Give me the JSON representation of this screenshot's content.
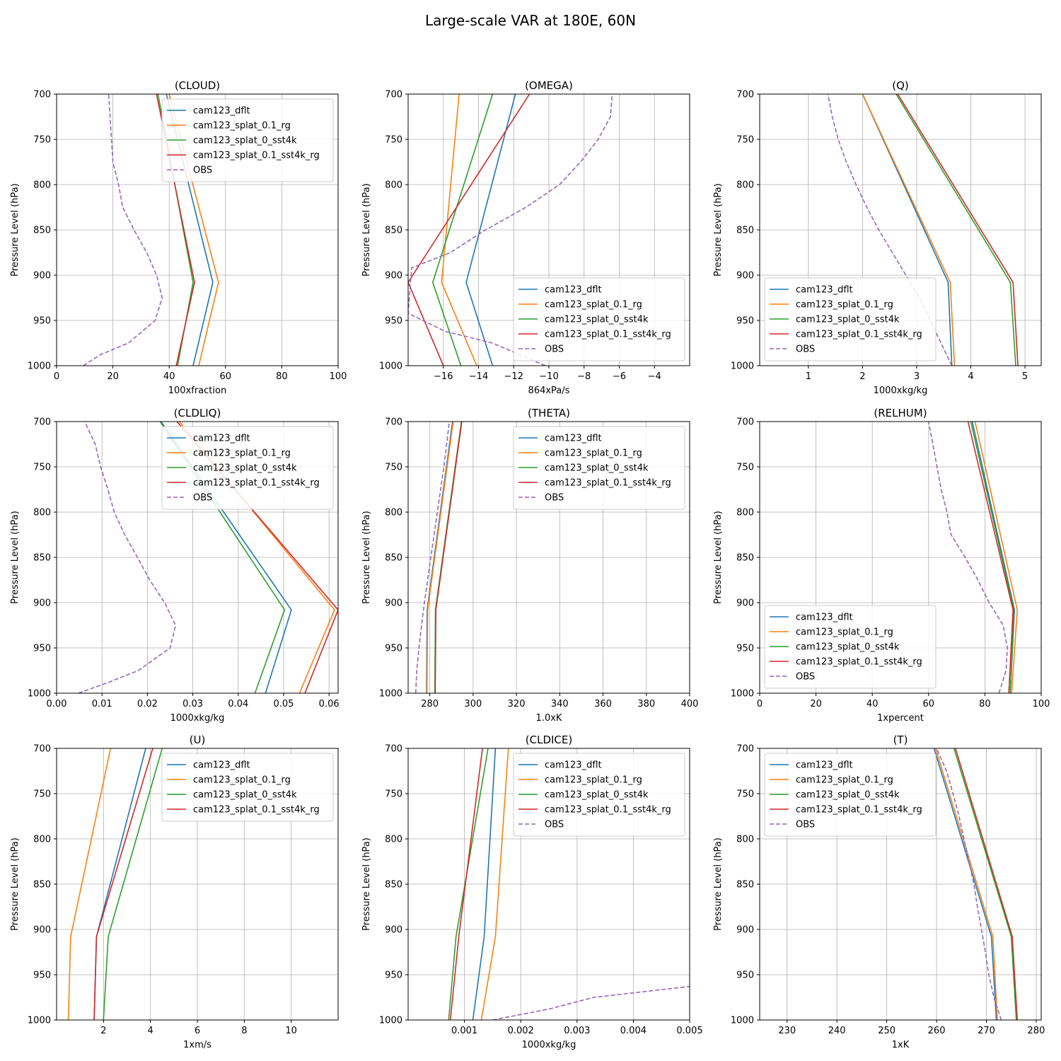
{
  "figure": {
    "suptitle": "Large-scale VAR at 180E, 60N"
  },
  "colors": {
    "cam123_dflt": "#1f77b4",
    "cam123_splat_0.1_rg": "#ff7f0e",
    "cam123_splat_0_sst4k": "#2ca02c",
    "cam123_splat_0.1_sst4k_rg": "#d62728",
    "OBS": "#9467bd",
    "grid": "#b0b0b0"
  },
  "chart_data": [
    {
      "type": "line",
      "title": "(CLOUD)",
      "xlabel": "100xfraction",
      "ylabel": "Pressure Level (hPa)",
      "xlim": [
        0,
        100
      ],
      "ylim": [
        1000,
        700
      ],
      "grid": true,
      "legend": "top-right",
      "xticks": [
        0,
        20,
        40,
        60,
        80,
        100
      ],
      "yticks": [
        700,
        750,
        800,
        850,
        900,
        950,
        1000
      ],
      "series": [
        {
          "name": "cam123_dflt",
          "x": [
            48.5,
            55.5,
            39.0
          ],
          "y": [
            1000,
            908,
            700
          ]
        },
        {
          "name": "cam123_splat_0.1_rg",
          "x": [
            50.5,
            57.5,
            40.0
          ],
          "y": [
            1000,
            908,
            700
          ]
        },
        {
          "name": "cam123_splat_0_sst4k",
          "x": [
            43.0,
            48.5,
            36.0
          ],
          "y": [
            1000,
            908,
            700
          ]
        },
        {
          "name": "cam123_splat_0.1_sst4k_rg",
          "x": [
            42.5,
            49.0,
            35.5
          ],
          "y": [
            1000,
            908,
            700
          ]
        },
        {
          "name": "OBS",
          "dashed": true,
          "x": [
            9.5,
            15.5,
            25.5,
            35.0,
            37.5,
            35.5,
            32.0,
            27.5,
            23.5,
            22.0,
            20.0,
            19.5,
            19.0,
            18.5
          ],
          "y": [
            1000,
            988,
            975,
            950,
            925,
            900,
            875,
            850,
            825,
            800,
            775,
            750,
            725,
            700
          ]
        }
      ]
    },
    {
      "type": "line",
      "title": "(OMEGA)",
      "xlabel": "864xPa/s",
      "ylabel": "Pressure Level (hPa)",
      "xlim": [
        -18,
        -2
      ],
      "ylim": [
        1000,
        700
      ],
      "grid": true,
      "legend": "lower-right",
      "xticks": [
        -16,
        -14,
        -12,
        -10,
        -8,
        -6,
        -4
      ],
      "xticklabels": [
        "−16",
        "−14",
        "−12",
        "−10",
        "−8",
        "−6",
        "−4"
      ],
      "yticks": [
        700,
        750,
        800,
        850,
        900,
        950,
        1000
      ],
      "series": [
        {
          "name": "cam123_dflt",
          "x": [
            -13.2,
            -14.7,
            -11.9
          ],
          "y": [
            1000,
            908,
            700
          ]
        },
        {
          "name": "cam123_splat_0.1_rg",
          "x": [
            -14.1,
            -16.1,
            -15.1
          ],
          "y": [
            1000,
            908,
            700
          ]
        },
        {
          "name": "cam123_splat_0_sst4k",
          "x": [
            -15.0,
            -16.6,
            -13.2
          ],
          "y": [
            1000,
            908,
            700
          ]
        },
        {
          "name": "cam123_splat_0.1_sst4k_rg",
          "x": [
            -16.0,
            -18.0,
            -11.1
          ],
          "y": [
            1000,
            908,
            700
          ]
        },
        {
          "name": "OBS",
          "dashed": true,
          "x": [
            -10.2,
            -13.2,
            -15.9,
            -18.0,
            -17.8,
            -15.6,
            -13.6,
            -11.3,
            -9.4,
            -8.2,
            -7.2,
            -6.5,
            -6.4
          ],
          "y": [
            1000,
            975,
            962,
            942,
            892,
            875,
            850,
            825,
            800,
            775,
            750,
            725,
            700
          ]
        }
      ]
    },
    {
      "type": "line",
      "title": "(Q)",
      "xlabel": "1000xkg/kg",
      "ylabel": "Pressure Level (hPa)",
      "xlim": [
        0.1,
        5.3
      ],
      "ylim": [
        1000,
        700
      ],
      "grid": true,
      "legend": "lower-left",
      "xticks": [
        1,
        2,
        3,
        4,
        5
      ],
      "yticks": [
        700,
        750,
        800,
        850,
        900,
        950,
        1000
      ],
      "series": [
        {
          "name": "cam123_dflt",
          "x": [
            3.65,
            3.58,
            2.0
          ],
          "y": [
            1000,
            908,
            700
          ]
        },
        {
          "name": "cam123_splat_0.1_rg",
          "x": [
            3.7,
            3.62,
            2.0
          ],
          "y": [
            1000,
            908,
            700
          ]
        },
        {
          "name": "cam123_splat_0_sst4k",
          "x": [
            4.83,
            4.73,
            2.62
          ],
          "y": [
            1000,
            908,
            700
          ]
        },
        {
          "name": "cam123_splat_0.1_sst4k_rg",
          "x": [
            4.87,
            4.78,
            2.65
          ],
          "y": [
            1000,
            908,
            700
          ]
        },
        {
          "name": "OBS",
          "dashed": true,
          "x": [
            3.65,
            3.45,
            3.25,
            3.05,
            2.8,
            2.55,
            2.3,
            2.08,
            1.88,
            1.7,
            1.55,
            1.44,
            1.36
          ],
          "y": [
            1000,
            975,
            950,
            925,
            900,
            875,
            850,
            825,
            800,
            775,
            750,
            725,
            700
          ]
        }
      ]
    },
    {
      "type": "line",
      "title": "(CLDLIQ)",
      "xlabel": "1000xkg/kg",
      "ylabel": "Pressure Level (hPa)",
      "xlim": [
        0,
        0.062
      ],
      "ylim": [
        1000,
        700
      ],
      "grid": true,
      "legend": "top-right",
      "xticks": [
        0,
        0.01,
        0.02,
        0.03,
        0.04,
        0.05,
        0.06
      ],
      "xticklabels": [
        "0.00",
        "0.01",
        "0.02",
        "0.03",
        "0.04",
        "0.05",
        "0.06"
      ],
      "yticks": [
        700,
        750,
        800,
        850,
        900,
        950,
        1000
      ],
      "series": [
        {
          "name": "cam123_dflt",
          "x": [
            0.046,
            0.0517,
            0.023
          ],
          "y": [
            1000,
            908,
            700
          ]
        },
        {
          "name": "cam123_splat_0.1_rg",
          "x": [
            0.0535,
            0.0612,
            0.027
          ],
          "y": [
            1000,
            908,
            700
          ]
        },
        {
          "name": "cam123_splat_0_sst4k",
          "x": [
            0.0437,
            0.0502,
            0.0228
          ],
          "y": [
            1000,
            908,
            700
          ]
        },
        {
          "name": "cam123_splat_0.1_sst4k_rg",
          "x": [
            0.0547,
            0.062,
            0.0265
          ],
          "y": [
            1000,
            908,
            700
          ]
        },
        {
          "name": "OBS",
          "dashed": true,
          "x": [
            0.0048,
            0.0115,
            0.018,
            0.025,
            0.0262,
            0.0238,
            0.0205,
            0.0178,
            0.015,
            0.0127,
            0.0113,
            0.0097,
            0.0085,
            0.0062
          ],
          "y": [
            1000,
            988,
            975,
            950,
            925,
            900,
            875,
            850,
            825,
            800,
            775,
            750,
            725,
            700
          ]
        }
      ]
    },
    {
      "type": "line",
      "title": "(THETA)",
      "xlabel": "1.0xK",
      "ylabel": "Pressure Level (hPa)",
      "xlim": [
        270,
        400
      ],
      "ylim": [
        1000,
        700
      ],
      "grid": true,
      "legend": "top-right",
      "xticks": [
        280,
        300,
        320,
        340,
        360,
        380,
        400
      ],
      "yticks": [
        700,
        750,
        800,
        850,
        900,
        950,
        1000
      ],
      "series": [
        {
          "name": "cam123_dflt",
          "x": [
            278.5,
            278.8,
            290.5
          ],
          "y": [
            1000,
            908,
            700
          ]
        },
        {
          "name": "cam123_splat_0.1_rg",
          "x": [
            278.7,
            279.0,
            290.8
          ],
          "y": [
            1000,
            908,
            700
          ]
        },
        {
          "name": "cam123_splat_0_sst4k",
          "x": [
            282.3,
            282.6,
            294.6
          ],
          "y": [
            1000,
            908,
            700
          ]
        },
        {
          "name": "cam123_splat_0.1_sst4k_rg",
          "x": [
            282.5,
            282.8,
            294.8
          ],
          "y": [
            1000,
            908,
            700
          ]
        },
        {
          "name": "OBS",
          "dashed": true,
          "x": [
            273.5,
            274.0,
            275.0,
            276.2,
            277.5,
            279.0,
            280.5,
            282.0,
            283.5,
            285.0,
            286.5,
            287.8,
            289.0
          ],
          "y": [
            1000,
            975,
            950,
            925,
            900,
            875,
            850,
            825,
            800,
            775,
            750,
            725,
            700
          ]
        }
      ]
    },
    {
      "type": "line",
      "title": "(RELHUM)",
      "xlabel": "1xpercent",
      "ylabel": "Pressure Level (hPa)",
      "xlim": [
        0,
        100
      ],
      "ylim": [
        1000,
        700
      ],
      "grid": true,
      "legend": "lower-left",
      "xticks": [
        0,
        20,
        40,
        60,
        80,
        100
      ],
      "yticks": [
        700,
        750,
        800,
        850,
        900,
        950,
        1000
      ],
      "series": [
        {
          "name": "cam123_dflt",
          "x": [
            89.0,
            90.5,
            75.5
          ],
          "y": [
            1000,
            908,
            700
          ]
        },
        {
          "name": "cam123_splat_0.1_rg",
          "x": [
            89.5,
            91.5,
            76.5
          ],
          "y": [
            1000,
            908,
            700
          ]
        },
        {
          "name": "cam123_splat_0_sst4k",
          "x": [
            89.0,
            90.3,
            75.0
          ],
          "y": [
            1000,
            908,
            700
          ]
        },
        {
          "name": "cam123_splat_0.1_sst4k_rg",
          "x": [
            88.5,
            90.0,
            74.0
          ],
          "y": [
            1000,
            908,
            700
          ]
        },
        {
          "name": "OBS",
          "dashed": true,
          "x": [
            85.0,
            87.5,
            88.0,
            86.5,
            81.5,
            77.5,
            73.0,
            68.0,
            66.5,
            64.5,
            63.0,
            61.5,
            60.0
          ],
          "y": [
            1000,
            975,
            950,
            925,
            900,
            875,
            850,
            825,
            800,
            775,
            750,
            725,
            700
          ]
        }
      ]
    },
    {
      "type": "line",
      "title": "(U)",
      "xlabel": "1xm/s",
      "ylabel": "Pressure Level (hPa)",
      "xlim": [
        0,
        12
      ],
      "ylim": [
        1000,
        700
      ],
      "grid": true,
      "legend": "top-right",
      "xticks": [
        2,
        4,
        6,
        8,
        10
      ],
      "yticks": [
        700,
        750,
        800,
        850,
        900,
        950,
        1000
      ],
      "series": [
        {
          "name": "cam123_dflt",
          "x": [
            1.6,
            1.7,
            3.8
          ],
          "y": [
            1000,
            908,
            700
          ]
        },
        {
          "name": "cam123_splat_0.1_rg",
          "x": [
            0.5,
            0.6,
            2.3
          ],
          "y": [
            1000,
            908,
            700
          ]
        },
        {
          "name": "cam123_splat_0_sst4k",
          "x": [
            2.0,
            2.2,
            4.5
          ],
          "y": [
            1000,
            908,
            700
          ]
        },
        {
          "name": "cam123_splat_0.1_sst4k_rg",
          "x": [
            1.6,
            1.7,
            4.1
          ],
          "y": [
            1000,
            908,
            700
          ]
        }
      ]
    },
    {
      "type": "line",
      "title": "(CLDICE)",
      "xlabel": "1000xkg/kg",
      "ylabel": "Pressure Level (hPa)",
      "xlim": [
        0,
        0.005
      ],
      "ylim": [
        1000,
        700
      ],
      "grid": true,
      "legend": "top-right",
      "xticks": [
        0.001,
        0.002,
        0.003,
        0.004,
        0.005
      ],
      "yticks": [
        700,
        750,
        800,
        850,
        900,
        950,
        1000
      ],
      "series": [
        {
          "name": "cam123_dflt",
          "x": [
            0.00115,
            0.00135,
            0.00155
          ],
          "y": [
            1000,
            908,
            700
          ]
        },
        {
          "name": "cam123_splat_0.1_rg",
          "x": [
            0.0013,
            0.00155,
            0.00178
          ],
          "y": [
            1000,
            908,
            700
          ]
        },
        {
          "name": "cam123_splat_0_sst4k",
          "x": [
            0.00072,
            0.00085,
            0.00142
          ],
          "y": [
            1000,
            908,
            700
          ]
        },
        {
          "name": "cam123_splat_0.1_sst4k_rg",
          "x": [
            0.00075,
            0.0009,
            0.00132
          ],
          "y": [
            1000,
            908,
            700
          ]
        },
        {
          "name": "OBS",
          "dashed": true,
          "x": [
            0.0015,
            0.0025,
            0.0033,
            0.005
          ],
          "y": [
            1000,
            988,
            975,
            963
          ]
        }
      ]
    },
    {
      "type": "line",
      "title": "(T)",
      "xlabel": "1xK",
      "ylabel": "Pressure Level (hPa)",
      "xlim": [
        224.5,
        281
      ],
      "ylim": [
        1000,
        700
      ],
      "grid": true,
      "legend": "top-left",
      "xticks": [
        230,
        240,
        250,
        260,
        270,
        280
      ],
      "yticks": [
        700,
        750,
        800,
        850,
        900,
        950,
        1000
      ],
      "series": [
        {
          "name": "cam123_dflt",
          "x": [
            272.0,
            271.0,
            259.5
          ],
          "y": [
            1000,
            908,
            700
          ]
        },
        {
          "name": "cam123_splat_0.1_rg",
          "x": [
            272.2,
            271.3,
            259.8
          ],
          "y": [
            1000,
            908,
            700
          ]
        },
        {
          "name": "cam123_splat_0_sst4k",
          "x": [
            276.0,
            275.0,
            263.5
          ],
          "y": [
            1000,
            908,
            700
          ]
        },
        {
          "name": "cam123_splat_0.1_sst4k_rg",
          "x": [
            276.2,
            275.2,
            263.8
          ],
          "y": [
            1000,
            908,
            700
          ]
        },
        {
          "name": "OBS",
          "dashed": true,
          "x": [
            273.0,
            271.5,
            270.5,
            269.8,
            269.0,
            268.2,
            267.5,
            266.5,
            265.5,
            264.5,
            263.3,
            262.0,
            260.0
          ],
          "y": [
            1000,
            975,
            950,
            925,
            900,
            875,
            850,
            825,
            800,
            775,
            750,
            725,
            700
          ]
        }
      ]
    }
  ]
}
